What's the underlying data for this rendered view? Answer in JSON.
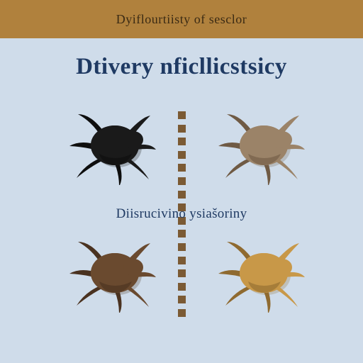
{
  "header": {
    "text": "Dyiflourtiisty of sesclor",
    "background_color": "#b0813d",
    "text_color": "#3a2a14"
  },
  "main_title": {
    "text": "Dtivery nficllicstsicy",
    "color": "#1f3a63"
  },
  "subtitle": {
    "text": "Diisrucivino ysiašoriny",
    "color": "#1f3a63"
  },
  "background_color": "#cfdcea",
  "bugs": {
    "top_left": {
      "color": "#1a1a1a",
      "shadow": "#0e0e0e"
    },
    "top_right": {
      "color": "#9b8368",
      "shadow": "#6f5a44"
    },
    "bottom_left": {
      "color": "#6a4a2f",
      "shadow": "#4a3220"
    },
    "bottom_right": {
      "color": "#c89848",
      "shadow": "#8f6a30"
    }
  },
  "divider": {
    "square_color": "#7b5a34",
    "count": 16
  }
}
